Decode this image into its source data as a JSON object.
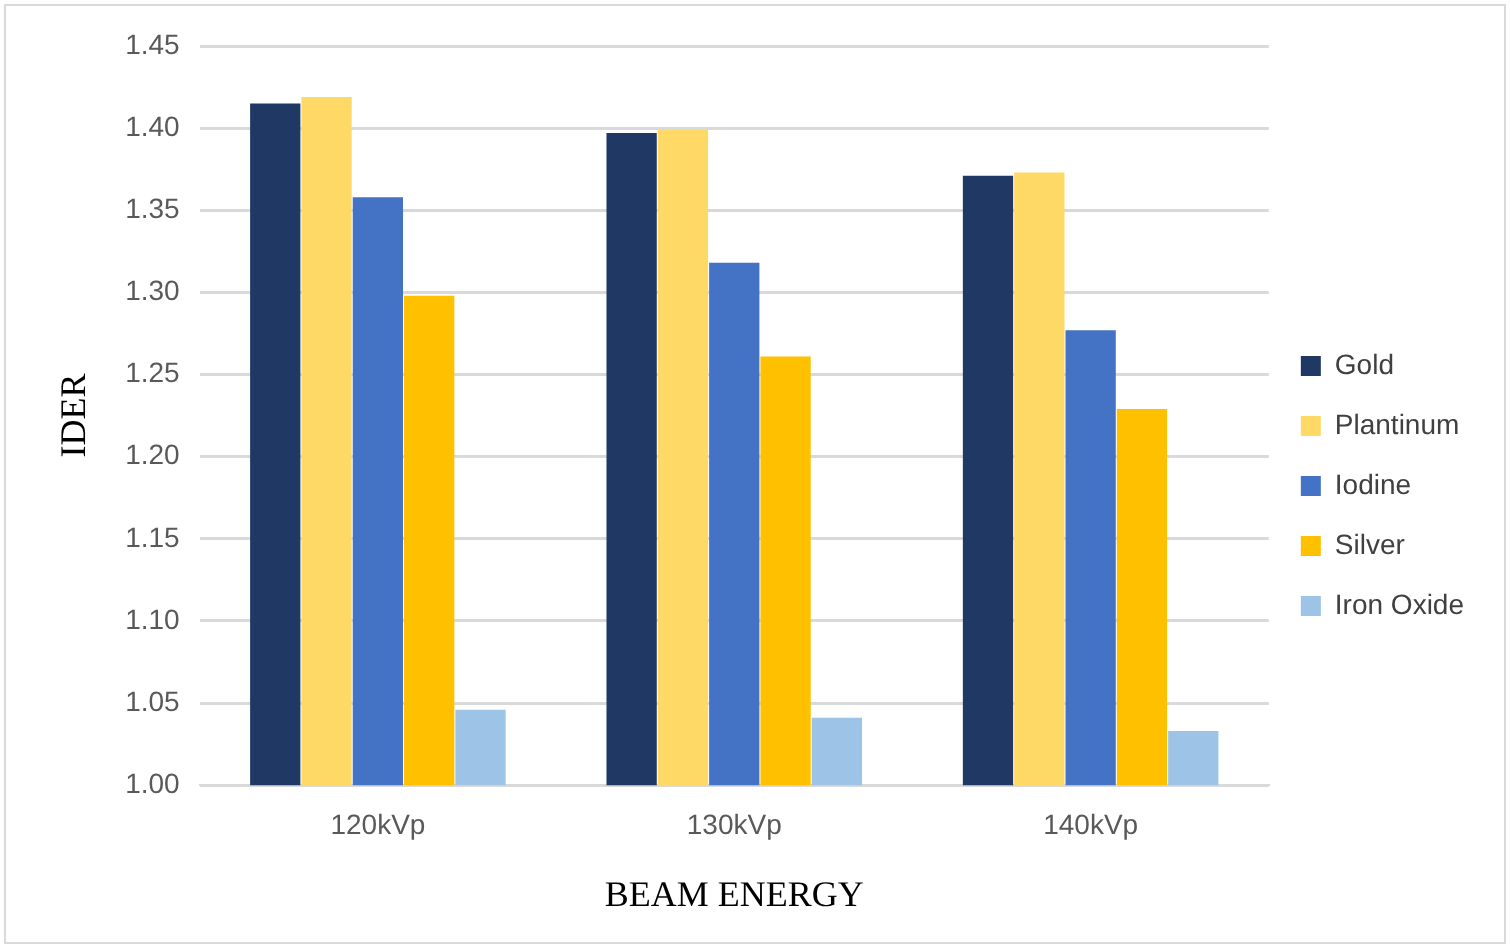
{
  "chart_data": {
    "type": "bar",
    "xlabel": "BEAM ENERGY",
    "ylabel": "IDER",
    "categories": [
      "120kVp",
      "130kVp",
      "140kVp"
    ],
    "series": [
      {
        "name": "Gold",
        "color": "#203864",
        "values": [
          1.415,
          1.397,
          1.371
        ]
      },
      {
        "name": "Plantinum",
        "color": "#ffd966",
        "values": [
          1.419,
          1.399,
          1.373
        ]
      },
      {
        "name": "Iodine",
        "color": "#4472c4",
        "values": [
          1.358,
          1.318,
          1.277
        ]
      },
      {
        "name": "Silver",
        "color": "#ffc000",
        "values": [
          1.298,
          1.261,
          1.229
        ]
      },
      {
        "name": "Iron Oxide",
        "color": "#9dc3e6",
        "values": [
          1.046,
          1.041,
          1.033
        ]
      }
    ],
    "ylim": [
      1.0,
      1.45
    ],
    "yticks": [
      {
        "value": 1.0,
        "label": "1.00"
      },
      {
        "value": 1.05,
        "label": "1.05"
      },
      {
        "value": 1.1,
        "label": "1.10"
      },
      {
        "value": 1.15,
        "label": "1.15"
      },
      {
        "value": 1.2,
        "label": "1.20"
      },
      {
        "value": 1.25,
        "label": "1.25"
      },
      {
        "value": 1.3,
        "label": "1.30"
      },
      {
        "value": 1.35,
        "label": "1.35"
      },
      {
        "value": 1.4,
        "label": "1.40"
      },
      {
        "value": 1.45,
        "label": "1.45"
      }
    ],
    "grid": "y",
    "legend": "right"
  }
}
